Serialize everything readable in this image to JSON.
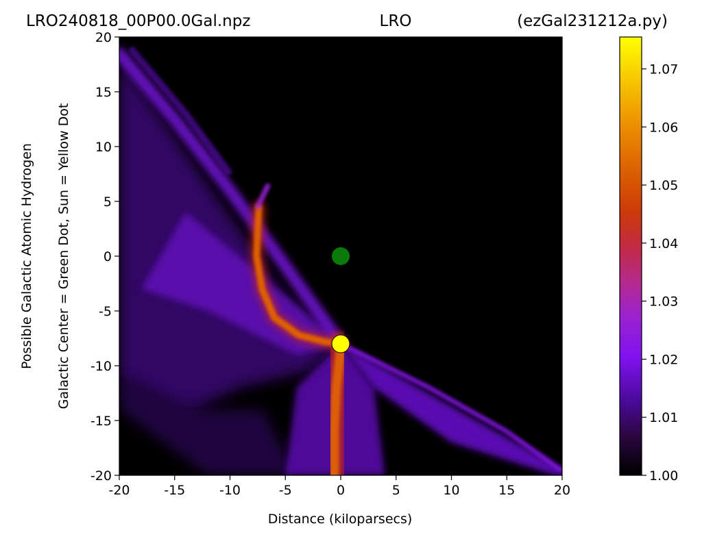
{
  "title": {
    "left": "LRO240818_00P00.0Gal.npz",
    "center": "LRO",
    "right": "(ezGal231212a.py)"
  },
  "colors": {
    "background": "#000000",
    "galactic_center_dot": "#0a7a0a",
    "sun_dot": "#ffff00",
    "colormap": "gnuplot"
  },
  "chart_data": {
    "type": "heatmap",
    "xlabel": "Distance (kiloparsecs)",
    "ylabel": [
      "Possible Galactic Atomic Hydrogen",
      "Galactic Center = Green Dot, Sun = Yellow Dot"
    ],
    "xlim": [
      -20,
      20
    ],
    "ylim": [
      -20,
      20
    ],
    "x_ticks": [
      -20,
      -15,
      -10,
      -5,
      0,
      5,
      10,
      15,
      20
    ],
    "y_ticks": [
      -20,
      -15,
      -10,
      -5,
      0,
      5,
      10,
      15,
      20
    ],
    "colorbar": {
      "min": 1.0,
      "max": 1.0755,
      "ticks": [
        1.0,
        1.01,
        1.02,
        1.03,
        1.04,
        1.05,
        1.06,
        1.07
      ],
      "tick_labels": [
        "1.00",
        "1.01",
        "1.02",
        "1.03",
        "1.04",
        "1.05",
        "1.06",
        "1.07"
      ]
    },
    "markers": [
      {
        "name": "Galactic Center",
        "x": 0,
        "y": 0,
        "color": "green"
      },
      {
        "name": "Sun",
        "x": 0,
        "y": -8,
        "color": "yellow"
      }
    ],
    "features": {
      "upper_left_band": [
        [
          -20,
          18
        ],
        [
          -8.5,
          1.5
        ],
        [
          -6.5,
          -1
        ],
        [
          0,
          -8
        ]
      ],
      "spiral_arm": [
        [
          -7.4,
          4.4
        ],
        [
          -7.5,
          2.5
        ],
        [
          -7.6,
          0
        ],
        [
          -7.1,
          -3
        ],
        [
          -6,
          -5.6
        ],
        [
          -3.8,
          -7.2
        ],
        [
          -1.5,
          -7.8
        ],
        [
          0,
          -8
        ]
      ],
      "lower_arm": [
        [
          0,
          -8
        ],
        [
          -0.4,
          -12
        ],
        [
          -0.6,
          -16
        ],
        [
          -0.6,
          -20
        ]
      ],
      "right_band": [
        [
          0,
          -8
        ],
        [
          8,
          -12
        ],
        [
          15,
          -16
        ],
        [
          20,
          -20
        ]
      ]
    }
  }
}
